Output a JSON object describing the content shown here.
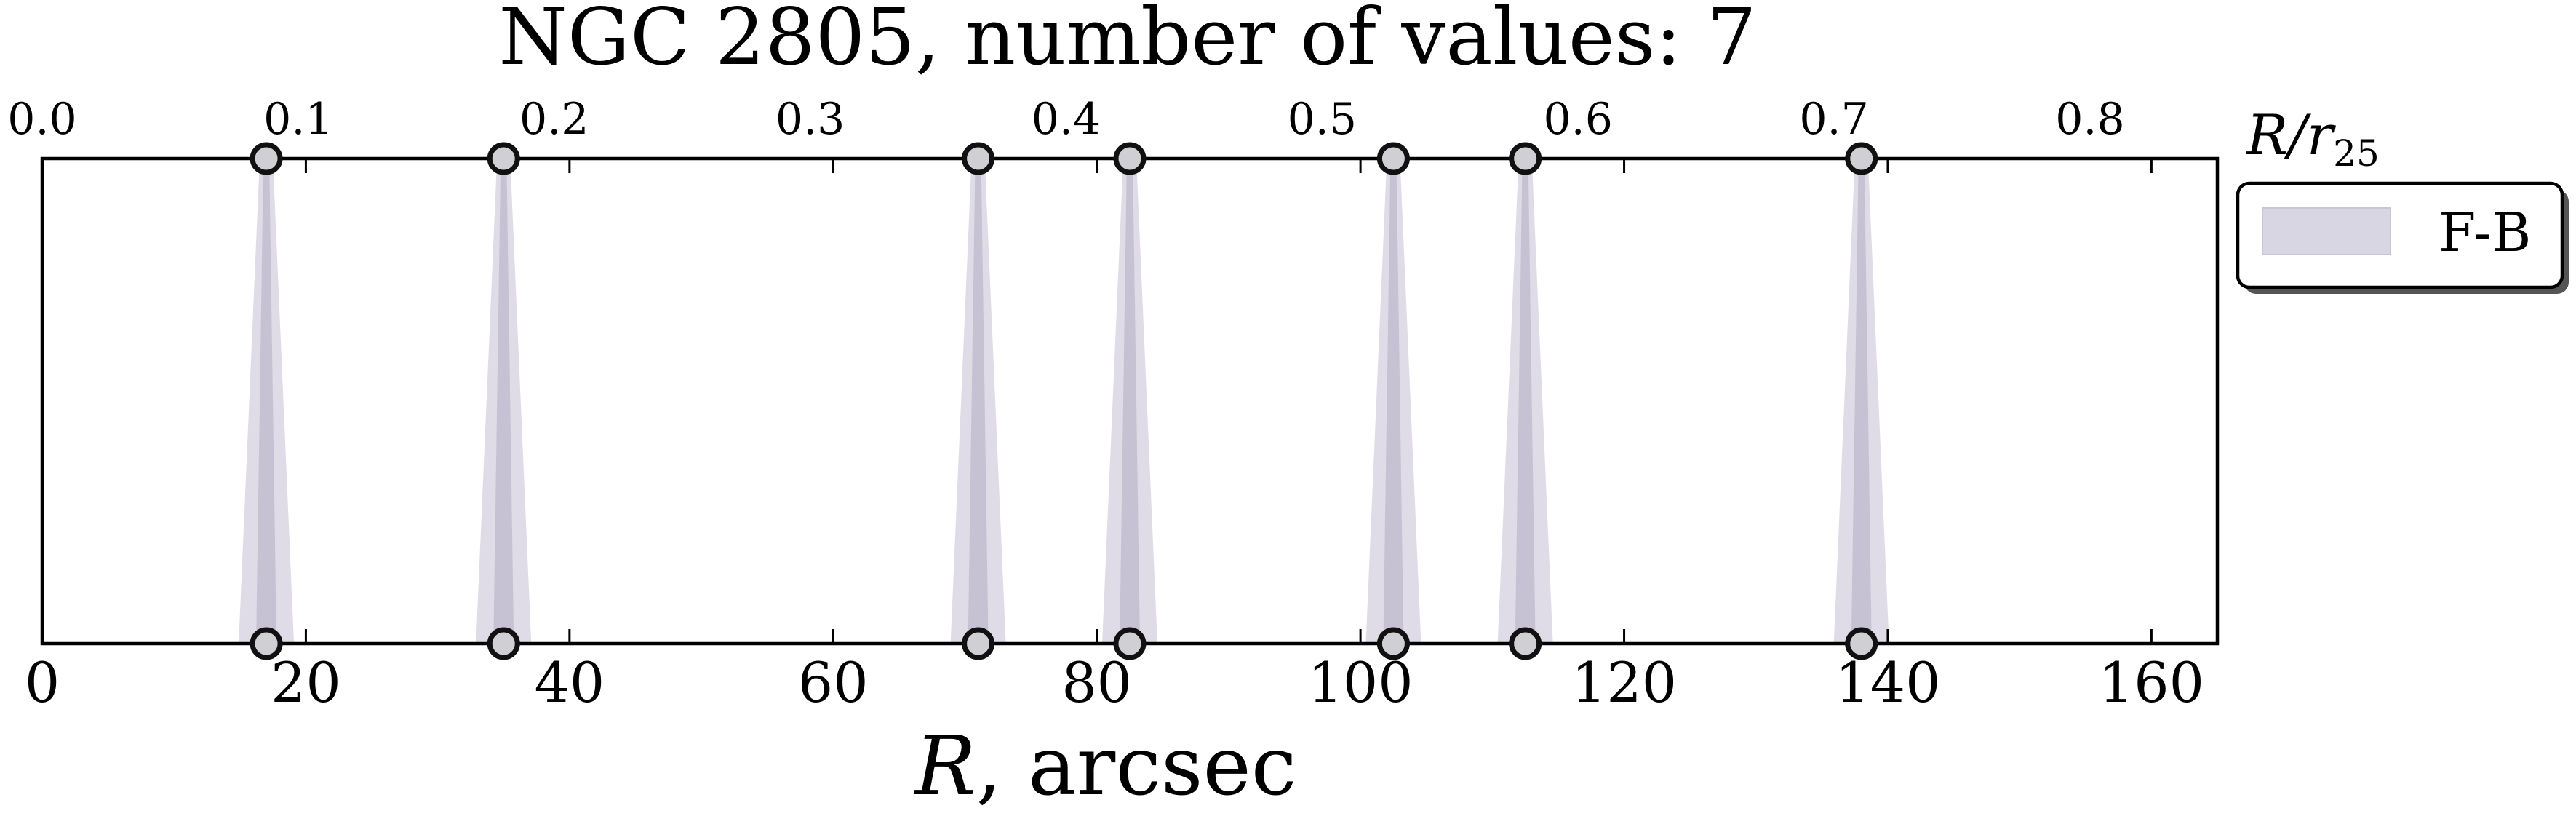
{
  "chart_data": {
    "type": "scatter",
    "title": "NGC 2805, number of values: 7",
    "xlabel": "R, arcsec",
    "xlabel_symbol": "R",
    "xlabel_suffix": ", arcsec",
    "xlim": [
      0,
      165
    ],
    "x_ticks": [
      0,
      20,
      40,
      60,
      80,
      100,
      120,
      140,
      160
    ],
    "x_tick_labels": [
      "0",
      "20",
      "40",
      "60",
      "80",
      "100",
      "120",
      "140",
      "160"
    ],
    "top_axis": {
      "label": "R/r25",
      "label_main": "R/r",
      "label_sub": "25",
      "scale_factor": 5.15,
      "ticks": [
        0.0,
        0.1,
        0.2,
        0.3,
        0.4,
        0.5,
        0.6,
        0.7,
        0.8
      ],
      "tick_labels": [
        "0.0",
        "0.1",
        "0.2",
        "0.3",
        "0.4",
        "0.5",
        "0.6",
        "0.7",
        "0.8"
      ]
    },
    "y_ticks_visible": false,
    "grid": false,
    "legend": {
      "placement": "outside-right-top",
      "entries": [
        {
          "label": "F-B",
          "color": "#d9d6e3"
        }
      ]
    },
    "series": [
      {
        "name": "F-B",
        "x": [
          17.0,
          35.0,
          71.0,
          82.5,
          102.5,
          112.5,
          138.0
        ]
      }
    ],
    "colors": {
      "band_fill": "#d9d6e3",
      "band_core": "#c3bfd2",
      "marker_edge": "#111111",
      "marker_fill": "#cfcfd4",
      "axis": "#000000"
    }
  }
}
